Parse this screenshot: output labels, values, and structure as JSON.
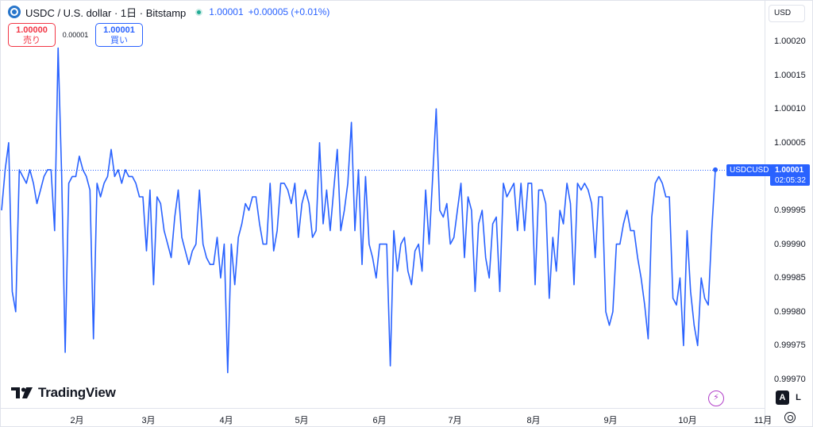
{
  "header": {
    "title": "USDC / U.S. dollar · 1日 · Bitstamp",
    "price": "1.00001",
    "change": "+0.00005 (+0.01%)"
  },
  "trade": {
    "sell_price": "1.00000",
    "sell_label": "売り",
    "spread": "0.00001",
    "buy_price": "1.00001",
    "buy_label": "買い"
  },
  "currency": "USD",
  "price_label": {
    "symbol": "USDCUSD",
    "price": "1.00001",
    "countdown": "02:05:32"
  },
  "logo_text": "TradingView",
  "buttons": {
    "auto": "A",
    "log": "L"
  },
  "colors": {
    "line": "#2962ff",
    "sell": "#f23645",
    "buy": "#2962ff",
    "up": "#22ab94"
  },
  "chart_data": {
    "type": "line",
    "ylim": [
      0.99967,
      1.00023
    ],
    "yticks": [
      "1.00020",
      "1.00015",
      "1.00010",
      "1.00005",
      "0.99995",
      "0.99990",
      "0.99985",
      "0.99980",
      "0.99975",
      "0.99970"
    ],
    "xticks": [
      "2月",
      "3月",
      "4月",
      "5月",
      "6月",
      "7月",
      "8月",
      "9月",
      "10月",
      "11月"
    ],
    "last_value": 1.00001,
    "values": [
      0.99995,
      1.00001,
      1.00005,
      0.99983,
      0.9998,
      1.00001,
      1.0,
      0.99999,
      1.00001,
      0.99999,
      0.99996,
      0.99998,
      1.0,
      1.00001,
      1.00001,
      0.99992,
      1.00019,
      1.0,
      0.99974,
      0.99999,
      1.0,
      1.0,
      1.00003,
      1.00001,
      1.0,
      0.99998,
      0.99976,
      0.99999,
      0.99997,
      0.99999,
      1.0,
      1.00004,
      1.0,
      1.00001,
      0.99999,
      1.00001,
      1.0,
      1.0,
      0.99999,
      0.99997,
      0.99997,
      0.99989,
      0.99998,
      0.99984,
      0.99997,
      0.99996,
      0.99992,
      0.9999,
      0.99988,
      0.99994,
      0.99998,
      0.99991,
      0.99989,
      0.99987,
      0.99989,
      0.9999,
      0.99998,
      0.9999,
      0.99988,
      0.99987,
      0.99987,
      0.99991,
      0.99985,
      0.9999,
      0.99971,
      0.9999,
      0.99984,
      0.99991,
      0.99993,
      0.99996,
      0.99995,
      0.99997,
      0.99997,
      0.99993,
      0.9999,
      0.9999,
      0.99999,
      0.99989,
      0.99992,
      0.99999,
      0.99999,
      0.99998,
      0.99996,
      0.99999,
      0.99991,
      0.99996,
      0.99998,
      0.99996,
      0.99991,
      0.99992,
      1.00005,
      0.99993,
      0.99998,
      0.99992,
      0.99998,
      1.00004,
      0.99992,
      0.99995,
      0.99999,
      1.00008,
      0.99992,
      1.00001,
      0.99987,
      1.0,
      0.9999,
      0.99988,
      0.99985,
      0.9999,
      0.9999,
      0.9999,
      0.99972,
      0.99992,
      0.99986,
      0.9999,
      0.99991,
      0.99986,
      0.99984,
      0.99989,
      0.9999,
      0.99986,
      0.99998,
      0.9999,
      1.0,
      1.0001,
      0.99995,
      0.99994,
      0.99996,
      0.9999,
      0.99991,
      0.99995,
      0.99999,
      0.99988,
      0.99997,
      0.99995,
      0.99983,
      0.99993,
      0.99995,
      0.99988,
      0.99985,
      0.99993,
      0.99994,
      0.99983,
      0.99999,
      0.99997,
      0.99998,
      0.99999,
      0.99992,
      0.99999,
      0.99992,
      0.99999,
      0.99999,
      0.99984,
      0.99998,
      0.99998,
      0.99996,
      0.99982,
      0.99991,
      0.99986,
      0.99995,
      0.99993,
      0.99999,
      0.99996,
      0.99984,
      0.99999,
      0.99998,
      0.99999,
      0.99998,
      0.99996,
      0.99988,
      0.99997,
      0.99997,
      0.9998,
      0.99978,
      0.9998,
      0.9999,
      0.9999,
      0.99993,
      0.99995,
      0.99992,
      0.99992,
      0.99988,
      0.99985,
      0.99981,
      0.99976,
      0.99994,
      0.99999,
      1.0,
      0.99999,
      0.99997,
      0.99997,
      0.99982,
      0.99981,
      0.99985,
      0.99975,
      0.99992,
      0.99983,
      0.99978,
      0.99975,
      0.99985,
      0.99982,
      0.99981,
      0.99992,
      1.00001
    ]
  }
}
